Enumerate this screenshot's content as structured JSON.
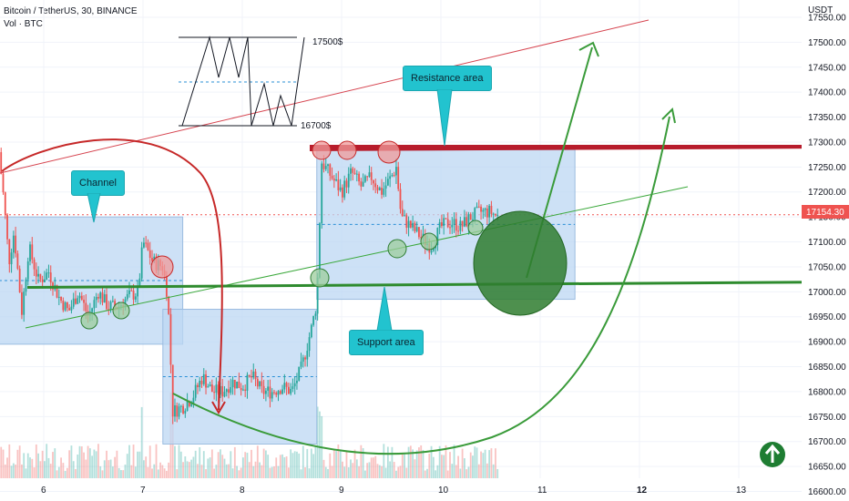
{
  "header": {
    "title": "Bitcoin / TetherUS, 30, BINANCE",
    "volume_label": "Vol · BTC"
  },
  "annotations": {
    "channel": "Channel",
    "resistance": "Resistance area",
    "support": "Support area",
    "top_price": "17500$",
    "bottom_price": "16700$"
  },
  "colors": {
    "up": "#26a69a",
    "down": "#ef5350",
    "box": "#bcd7f3",
    "resistance": "#b71c2c",
    "support": "#2e8b2e",
    "callout": "#22c3cf",
    "price_tag": "#ef5350"
  },
  "icons": {
    "arrow_button": "up-arrow-circle-icon"
  },
  "chart_data": {
    "type": "candlestick",
    "y_axis": {
      "unit_label": "USDT",
      "ticks": [
        17550,
        17500,
        17450,
        17400,
        17350,
        17300,
        17250,
        17200,
        17150,
        17100,
        17050,
        17000,
        16950,
        16900,
        16850,
        16800,
        16750,
        16700,
        16650,
        16600
      ],
      "range": [
        16590,
        17570
      ]
    },
    "x_axis": {
      "ticks": [
        "6",
        "7",
        "8",
        "9",
        "10",
        "11",
        "12",
        "13"
      ]
    },
    "current_price": "17154.30",
    "price_path": [
      [
        5.55,
        17280
      ],
      [
        5.6,
        17180
      ],
      [
        5.65,
        17060
      ],
      [
        5.7,
        17120
      ],
      [
        5.78,
        16960
      ],
      [
        5.85,
        17090
      ],
      [
        5.95,
        17020
      ],
      [
        6.05,
        17040
      ],
      [
        6.15,
        16990
      ],
      [
        6.25,
        16960
      ],
      [
        6.35,
        17000
      ],
      [
        6.45,
        16950
      ],
      [
        6.55,
        17000
      ],
      [
        6.65,
        16970
      ],
      [
        6.75,
        16970
      ],
      [
        6.85,
        16990
      ],
      [
        6.95,
        17000
      ],
      [
        7.0,
        17100
      ],
      [
        7.1,
        17060
      ],
      [
        7.2,
        17050
      ],
      [
        7.25,
        16990
      ],
      [
        7.3,
        16760
      ],
      [
        7.4,
        16770
      ],
      [
        7.5,
        16790
      ],
      [
        7.6,
        16830
      ],
      [
        7.7,
        16800
      ],
      [
        7.8,
        16800
      ],
      [
        7.9,
        16820
      ],
      [
        8.0,
        16810
      ],
      [
        8.1,
        16830
      ],
      [
        8.2,
        16800
      ],
      [
        8.3,
        16800
      ],
      [
        8.4,
        16810
      ],
      [
        8.5,
        16800
      ],
      [
        8.6,
        16850
      ],
      [
        8.7,
        16930
      ],
      [
        8.75,
        16980
      ],
      [
        8.8,
        17260
      ],
      [
        8.9,
        17230
      ],
      [
        9.0,
        17200
      ],
      [
        9.1,
        17240
      ],
      [
        9.2,
        17210
      ],
      [
        9.3,
        17230
      ],
      [
        9.4,
        17200
      ],
      [
        9.5,
        17230
      ],
      [
        9.55,
        17250
      ],
      [
        9.6,
        17150
      ],
      [
        9.7,
        17130
      ],
      [
        9.8,
        17110
      ],
      [
        9.9,
        17090
      ],
      [
        10.0,
        17130
      ],
      [
        10.1,
        17140
      ],
      [
        10.2,
        17130
      ],
      [
        10.3,
        17150
      ],
      [
        10.4,
        17160
      ],
      [
        10.5,
        17160
      ],
      [
        10.58,
        17150
      ]
    ],
    "levels": {
      "resistance": 17290,
      "support": 17000,
      "green_zone_center": 17040
    },
    "boxes": [
      {
        "name": "channel",
        "x": [
          5.55,
          7.4
        ],
        "y": [
          16895,
          17150
        ]
      },
      {
        "name": "lower-range",
        "x": [
          7.2,
          8.75
        ],
        "y": [
          16695,
          16965
        ]
      },
      {
        "name": "upper-range",
        "x": [
          8.75,
          11.35
        ],
        "y": [
          16985,
          17285
        ]
      }
    ],
    "inset_levels": {
      "upper": "17500$",
      "lower": "16700$"
    }
  }
}
